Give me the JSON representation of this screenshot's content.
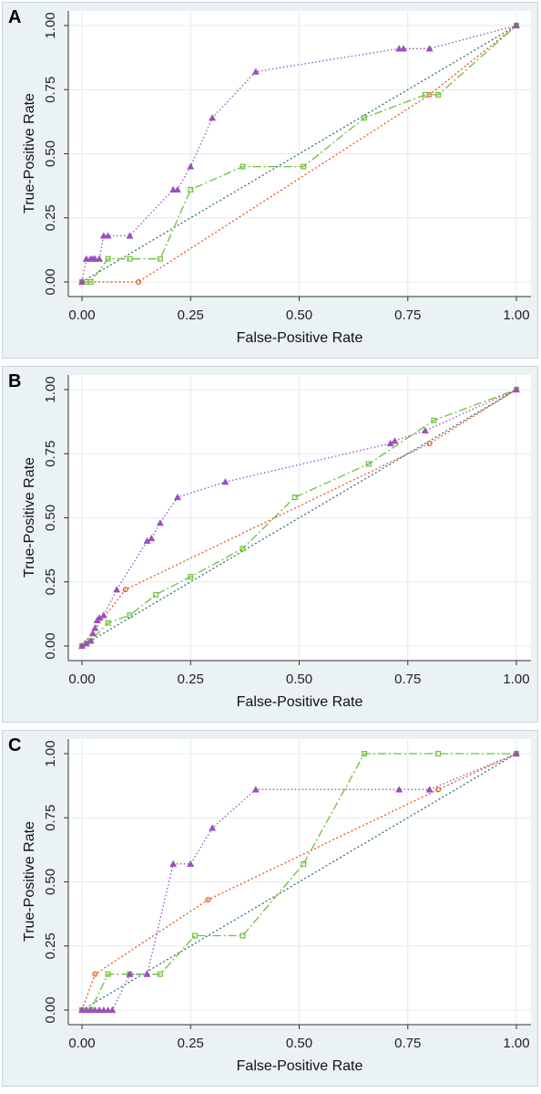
{
  "chart_data": [
    {
      "type": "line",
      "panel_label": "A",
      "xlabel": "False-Positive Rate",
      "ylabel": "True-Positive Rate",
      "xlim": [
        0,
        1
      ],
      "ylim": [
        0,
        1
      ],
      "xticks": [
        "0.00",
        "0.25",
        "0.50",
        "0.75",
        "1.00"
      ],
      "yticks": [
        "0.00",
        "0.25",
        "0.50",
        "0.75",
        "1.00"
      ],
      "grid": true,
      "series": [
        {
          "style": "dotted-triangle",
          "color": "#9b4fbf",
          "marker": "triangle",
          "x": [
            0,
            0.01,
            0.02,
            0.025,
            0.03,
            0.04,
            0.05,
            0.06,
            0.11,
            0.21,
            0.22,
            0.25,
            0.3,
            0.4,
            0.73,
            0.74,
            0.8,
            1.0
          ],
          "y": [
            0,
            0.09,
            0.09,
            0.09,
            0.09,
            0.09,
            0.18,
            0.18,
            0.18,
            0.36,
            0.36,
            0.45,
            0.64,
            0.82,
            0.91,
            0.91,
            0.91,
            1.0
          ]
        },
        {
          "style": "dash-dot-square",
          "color": "#6fbf3a",
          "marker": "square",
          "x": [
            0,
            0.01,
            0.02,
            0.06,
            0.11,
            0.18,
            0.25,
            0.37,
            0.51,
            0.65,
            0.79,
            0.82,
            1.0
          ],
          "y": [
            0,
            0,
            0,
            0.09,
            0.09,
            0.09,
            0.36,
            0.45,
            0.45,
            0.64,
            0.73,
            0.73,
            1.0
          ]
        },
        {
          "style": "dotted-circle",
          "color": "#e8541e",
          "marker": "circle",
          "x": [
            0,
            0.13,
            0.8,
            1.0
          ],
          "y": [
            0,
            0,
            0.73,
            1.0
          ]
        },
        {
          "style": "dotted-diagonal",
          "color": "#2e6e73",
          "marker": "none",
          "x": [
            0,
            1.0
          ],
          "y": [
            0,
            1.0
          ]
        }
      ]
    },
    {
      "type": "line",
      "panel_label": "B",
      "xlabel": "False-Positive Rate",
      "ylabel": "True-Positive Rate",
      "xlim": [
        0,
        1
      ],
      "ylim": [
        0,
        1
      ],
      "xticks": [
        "0.00",
        "0.25",
        "0.50",
        "0.75",
        "1.00"
      ],
      "yticks": [
        "0.00",
        "0.25",
        "0.50",
        "0.75",
        "1.00"
      ],
      "grid": true,
      "series": [
        {
          "style": "dotted-triangle",
          "color": "#9b4fbf",
          "marker": "triangle",
          "x": [
            0,
            0.01,
            0.02,
            0.025,
            0.03,
            0.035,
            0.04,
            0.05,
            0.08,
            0.15,
            0.16,
            0.18,
            0.22,
            0.33,
            0.71,
            0.72,
            0.79,
            1.0
          ],
          "y": [
            0,
            0.01,
            0.02,
            0.05,
            0.07,
            0.1,
            0.11,
            0.12,
            0.22,
            0.41,
            0.42,
            0.48,
            0.58,
            0.64,
            0.79,
            0.8,
            0.84,
            1.0
          ]
        },
        {
          "style": "dash-dot-square",
          "color": "#6fbf3a",
          "marker": "square",
          "x": [
            0,
            0.01,
            0.02,
            0.06,
            0.11,
            0.17,
            0.25,
            0.37,
            0.49,
            0.66,
            0.81,
            1.0
          ],
          "y": [
            0,
            0.01,
            0.02,
            0.09,
            0.12,
            0.2,
            0.27,
            0.38,
            0.58,
            0.71,
            0.88,
            1.0
          ]
        },
        {
          "style": "dotted-circle",
          "color": "#e8541e",
          "marker": "circle",
          "x": [
            0,
            0.1,
            0.8,
            1.0
          ],
          "y": [
            0,
            0.22,
            0.79,
            1.0
          ]
        },
        {
          "style": "dotted-diagonal",
          "color": "#2e6e73",
          "marker": "none",
          "x": [
            0,
            1.0
          ],
          "y": [
            0,
            1.0
          ]
        }
      ]
    },
    {
      "type": "line",
      "panel_label": "C",
      "xlabel": "False-Positive Rate",
      "ylabel": "True-Positive Rate",
      "xlim": [
        0,
        1
      ],
      "ylim": [
        0,
        1
      ],
      "xticks": [
        "0.00",
        "0.25",
        "0.50",
        "0.75",
        "1.00"
      ],
      "yticks": [
        "0.00",
        "0.25",
        "0.50",
        "0.75",
        "1.00"
      ],
      "grid": true,
      "series": [
        {
          "style": "dotted-triangle",
          "color": "#9b4fbf",
          "marker": "triangle",
          "x": [
            0,
            0.01,
            0.02,
            0.03,
            0.04,
            0.05,
            0.06,
            0.07,
            0.11,
            0.15,
            0.21,
            0.25,
            0.3,
            0.4,
            0.73,
            0.8,
            1.0
          ],
          "y": [
            0,
            0,
            0,
            0,
            0,
            0,
            0,
            0,
            0.14,
            0.14,
            0.57,
            0.57,
            0.71,
            0.86,
            0.86,
            0.86,
            1.0
          ]
        },
        {
          "style": "dash-dot-square",
          "color": "#6fbf3a",
          "marker": "square",
          "x": [
            0,
            0.02,
            0.06,
            0.11,
            0.18,
            0.26,
            0.37,
            0.51,
            0.65,
            0.82,
            1.0
          ],
          "y": [
            0,
            0,
            0.14,
            0.14,
            0.14,
            0.29,
            0.29,
            0.57,
            1.0,
            1.0,
            1.0
          ]
        },
        {
          "style": "dotted-circle",
          "color": "#e8541e",
          "marker": "circle",
          "x": [
            0,
            0.03,
            0.29,
            0.82,
            1.0
          ],
          "y": [
            0,
            0.14,
            0.43,
            0.86,
            1.0
          ]
        },
        {
          "style": "dotted-diagonal",
          "color": "#2e6e73",
          "marker": "none",
          "x": [
            0,
            1.0
          ],
          "y": [
            0,
            1.0
          ]
        }
      ]
    }
  ]
}
